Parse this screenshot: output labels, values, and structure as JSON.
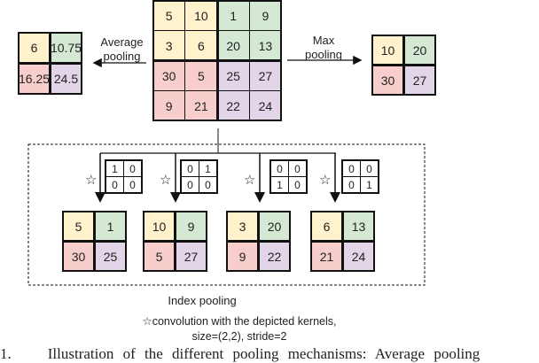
{
  "colors": {
    "yellow": "#fff2cc",
    "green": "#d5e8d4",
    "red": "#f8cecc",
    "purple": "#e1d5e7"
  },
  "input_grid": [
    [
      "5",
      "10",
      "1",
      "9"
    ],
    [
      "3",
      "6",
      "20",
      "13"
    ],
    [
      "30",
      "5",
      "25",
      "27"
    ],
    [
      "9",
      "21",
      "22",
      "24"
    ]
  ],
  "average_pooling": {
    "label_line1": "Average",
    "label_line2": "pooling",
    "output": [
      [
        "6",
        "10.75"
      ],
      [
        "16.25",
        "24.5"
      ]
    ]
  },
  "max_pooling": {
    "label_line1": "Max",
    "label_line2": "pooling",
    "output": [
      [
        "10",
        "20"
      ],
      [
        "30",
        "27"
      ]
    ]
  },
  "index_pooling": {
    "label": "Index pooling",
    "branches": [
      {
        "kernel": [
          [
            "1",
            "0"
          ],
          [
            "0",
            "0"
          ]
        ],
        "output": [
          [
            "5",
            "1"
          ],
          [
            "30",
            "25"
          ]
        ]
      },
      {
        "kernel": [
          [
            "0",
            "1"
          ],
          [
            "0",
            "0"
          ]
        ],
        "output": [
          [
            "10",
            "9"
          ],
          [
            "5",
            "27"
          ]
        ]
      },
      {
        "kernel": [
          [
            "0",
            "0"
          ],
          [
            "1",
            "0"
          ]
        ],
        "output": [
          [
            "3",
            "20"
          ],
          [
            "9",
            "22"
          ]
        ]
      },
      {
        "kernel": [
          [
            "0",
            "0"
          ],
          [
            "0",
            "1"
          ]
        ],
        "output": [
          [
            "6",
            "13"
          ],
          [
            "21",
            "24"
          ]
        ]
      }
    ]
  },
  "legend": {
    "symbol": "☆",
    "line1": "convolution with the depicted kernels,",
    "line2": "size=(2,2), stride=2"
  },
  "caption": {
    "number": "1.",
    "text": "Illustration of the different pooling mechanisms: Average pooling"
  }
}
